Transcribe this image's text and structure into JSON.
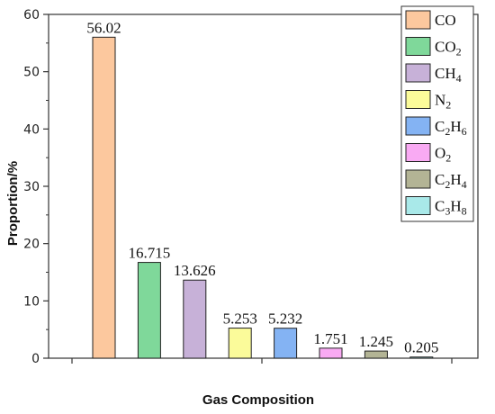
{
  "chart_data": {
    "type": "bar",
    "categories": [
      "CO",
      "CO2",
      "CH4",
      "N2",
      "C2H6",
      "O2",
      "C2H4",
      "C3H8"
    ],
    "values": [
      56.02,
      16.715,
      13.626,
      5.253,
      5.232,
      1.751,
      1.245,
      0.205
    ],
    "data_labels": [
      "56.02",
      "16.715",
      "13.626",
      "5.253",
      "5.232",
      "1.751",
      "1.245",
      "0.205"
    ],
    "xlabel": "Gas Composition",
    "ylabel": "Proportion/%",
    "ylim": [
      0,
      60
    ],
    "yticks": [
      "0",
      "10",
      "20",
      "30",
      "40",
      "50",
      "60"
    ],
    "grid": false,
    "legend_position": "top-right",
    "colors": [
      "#fcc89e",
      "#7fd89a",
      "#c7b1d8",
      "#fbfb9a",
      "#84b3f3",
      "#f9aaf3",
      "#b3b495",
      "#a9e9e9"
    ],
    "legend": [
      {
        "parts": [
          [
            "CO",
            false
          ]
        ]
      },
      {
        "parts": [
          [
            "CO",
            false
          ],
          [
            "2",
            true
          ]
        ]
      },
      {
        "parts": [
          [
            "CH",
            false
          ],
          [
            "4",
            true
          ]
        ]
      },
      {
        "parts": [
          [
            "N",
            false
          ],
          [
            "2",
            true
          ]
        ]
      },
      {
        "parts": [
          [
            "C",
            false
          ],
          [
            "2",
            true
          ],
          [
            "H",
            false
          ],
          [
            "6",
            true
          ]
        ]
      },
      {
        "parts": [
          [
            "O",
            false
          ],
          [
            "2",
            true
          ]
        ]
      },
      {
        "parts": [
          [
            "C",
            false
          ],
          [
            "2",
            true
          ],
          [
            "H",
            false
          ],
          [
            "4",
            true
          ]
        ]
      },
      {
        "parts": [
          [
            "C",
            false
          ],
          [
            "3",
            true
          ],
          [
            "H",
            false
          ],
          [
            "8",
            true
          ]
        ]
      }
    ]
  }
}
